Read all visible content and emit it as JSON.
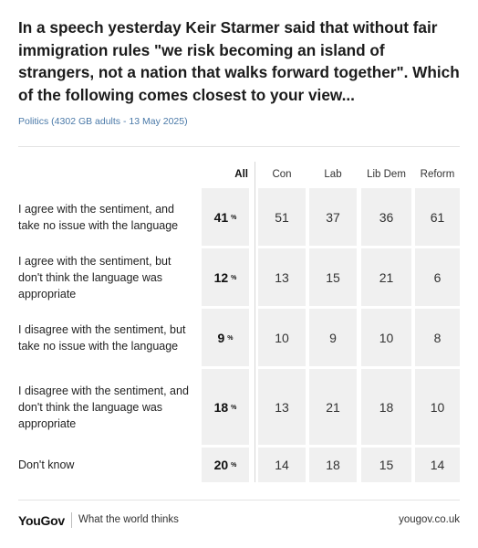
{
  "header": {
    "title": "In a speech yesterday Keir Starmer said that without fair immigration rules \"we risk becoming an island of strangers, not a nation that walks forward together\". Which of the following comes closest to your view...",
    "subtitle": "Politics (4302 GB adults - 13 May 2025)"
  },
  "table": {
    "all_label": "All",
    "pct_symbol": "%",
    "columns": [
      "Con",
      "Lab",
      "Lib Dem",
      "Reform"
    ],
    "rows": [
      {
        "label": "I agree with the sentiment, and take no issue with the language",
        "all": 41,
        "values": [
          51,
          37,
          36,
          61
        ]
      },
      {
        "label": "I agree with the sentiment, but don't think the language was appropriate",
        "all": 12,
        "values": [
          13,
          15,
          21,
          6
        ]
      },
      {
        "label": "I disagree with the sentiment, but take no issue with the language",
        "all": 9,
        "values": [
          10,
          9,
          10,
          8
        ]
      },
      {
        "label": "I disagree with the sentiment, and don't think the language was appropriate",
        "all": 18,
        "values": [
          13,
          21,
          18,
          10
        ]
      },
      {
        "label": "Don't know",
        "all": 20,
        "values": [
          14,
          18,
          15,
          14
        ]
      }
    ]
  },
  "chart_data": {
    "type": "table",
    "title": "In a speech yesterday Keir Starmer said that without fair immigration rules \"we risk becoming an island of strangers, not a nation that walks forward together\". Which of the following comes closest to your view...",
    "subtitle": "Politics (4302 GB adults - 13 May 2025)",
    "unit": "%",
    "columns": [
      "All",
      "Con",
      "Lab",
      "Lib Dem",
      "Reform"
    ],
    "categories": [
      "I agree with the sentiment, and take no issue with the language",
      "I agree with the sentiment, but don't think the language was appropriate",
      "I disagree with the sentiment, but take no issue with the language",
      "I disagree with the sentiment, and don't think the language was appropriate",
      "Don't know"
    ],
    "series": [
      {
        "name": "All",
        "values": [
          41,
          12,
          9,
          18,
          20
        ]
      },
      {
        "name": "Con",
        "values": [
          51,
          13,
          10,
          13,
          14
        ]
      },
      {
        "name": "Lab",
        "values": [
          37,
          15,
          9,
          21,
          18
        ]
      },
      {
        "name": "Lib Dem",
        "values": [
          36,
          21,
          10,
          18,
          15
        ]
      },
      {
        "name": "Reform",
        "values": [
          61,
          6,
          8,
          10,
          14
        ]
      }
    ]
  },
  "footer": {
    "logo": "YouGov",
    "tagline": "What the world thinks",
    "site": "yougov.co.uk"
  }
}
